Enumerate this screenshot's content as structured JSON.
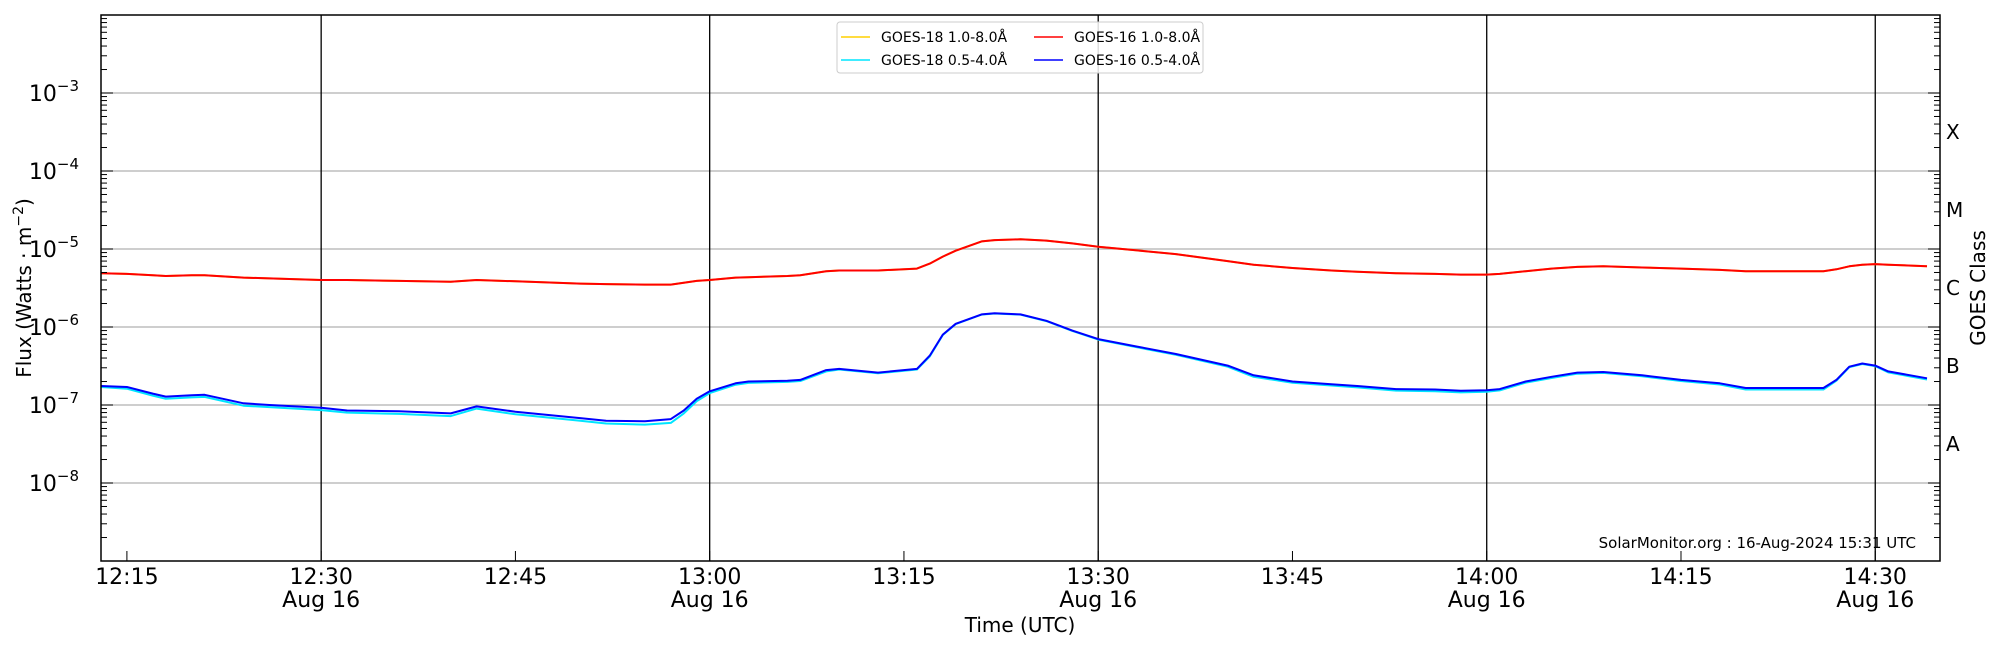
{
  "chart_data": {
    "type": "line",
    "title": "",
    "xlabel": "Time (UTC)",
    "ylabel": {
      "prefix": "Flux (Watts · m",
      "exp": "−2",
      "suffix": ")"
    },
    "y2label": "GOES Class",
    "xlim": [
      "12:13",
      "14:35"
    ],
    "ylim": [
      1e-09,
      0.01
    ],
    "yscale": "log",
    "grid": "horizontal at decades",
    "legend_position": "top-center",
    "watermark": "SolarMonitor.org : 16-Aug-2024 15:31 UTC",
    "x_ticks": [
      {
        "time": "12:15",
        "label": "12:15",
        "date": ""
      },
      {
        "time": "12:30",
        "label": "12:30",
        "date": "Aug 16"
      },
      {
        "time": "12:45",
        "label": "12:45",
        "date": ""
      },
      {
        "time": "13:00",
        "label": "13:00",
        "date": "Aug 16"
      },
      {
        "time": "13:15",
        "label": "13:15",
        "date": ""
      },
      {
        "time": "13:30",
        "label": "13:30",
        "date": "Aug 16"
      },
      {
        "time": "13:45",
        "label": "13:45",
        "date": ""
      },
      {
        "time": "14:00",
        "label": "14:00",
        "date": "Aug 16"
      },
      {
        "time": "14:15",
        "label": "14:15",
        "date": ""
      },
      {
        "time": "14:30",
        "label": "14:30",
        "date": "Aug 16"
      }
    ],
    "y_ticks": [
      {
        "value": 1e-08,
        "base": "10",
        "exp": "−8"
      },
      {
        "value": 1e-07,
        "base": "10",
        "exp": "−7"
      },
      {
        "value": 1e-06,
        "base": "10",
        "exp": "−6"
      },
      {
        "value": 1e-05,
        "base": "10",
        "exp": "−5"
      },
      {
        "value": 0.0001,
        "base": "10",
        "exp": "−4"
      },
      {
        "value": 0.001,
        "base": "10",
        "exp": "−3"
      }
    ],
    "goes_classes": [
      {
        "label": "A",
        "value": 3.16e-08
      },
      {
        "label": "B",
        "value": 3.16e-07
      },
      {
        "label": "C",
        "value": 3.16e-06
      },
      {
        "label": "M",
        "value": 3.16e-05
      },
      {
        "label": "X",
        "value": 0.000316
      }
    ],
    "x": [
      "12:13",
      "12:15",
      "12:17",
      "12:18",
      "12:20",
      "12:21",
      "12:24",
      "12:26",
      "12:30",
      "12:32",
      "12:36",
      "12:40",
      "12:42",
      "12:45",
      "12:50",
      "12:52",
      "12:55",
      "12:57",
      "12:58",
      "12:59",
      "13:00",
      "13:02",
      "13:03",
      "13:06",
      "13:07",
      "13:09",
      "13:10",
      "13:13",
      "13:16",
      "13:17",
      "13:18",
      "13:19",
      "13:21",
      "13:22",
      "13:24",
      "13:26",
      "13:28",
      "13:30",
      "13:33",
      "13:36",
      "13:40",
      "13:42",
      "13:45",
      "13:48",
      "13:50",
      "13:53",
      "13:56",
      "13:58",
      "14:00",
      "14:01",
      "14:03",
      "14:05",
      "14:07",
      "14:09",
      "14:12",
      "14:15",
      "14:18",
      "14:20",
      "14:24",
      "14:26",
      "14:27",
      "14:28",
      "14:29",
      "14:30",
      "14:31",
      "14:34"
    ],
    "series": [
      {
        "name": "GOES-18 1.0-8.0Å",
        "color": "#ffd000",
        "values": [
          4.9e-06,
          4.8e-06,
          4.6e-06,
          4.5e-06,
          4.6e-06,
          4.6e-06,
          4.3e-06,
          4.2e-06,
          4e-06,
          4e-06,
          3.9e-06,
          3.8e-06,
          4e-06,
          3.85e-06,
          3.6e-06,
          3.55e-06,
          3.5e-06,
          3.5e-06,
          3.7e-06,
          3.9e-06,
          4e-06,
          4.3e-06,
          4.35e-06,
          4.5e-06,
          4.6e-06,
          5.2e-06,
          5.3e-06,
          5.3e-06,
          5.6e-06,
          6.5e-06,
          8e-06,
          9.5e-06,
          1.25e-05,
          1.3e-05,
          1.33e-05,
          1.28e-05,
          1.18e-05,
          1.07e-05,
          9.6e-06,
          8.6e-06,
          7e-06,
          6.3e-06,
          5.7e-06,
          5.3e-06,
          5.1e-06,
          4.9e-06,
          4.8e-06,
          4.7e-06,
          4.7e-06,
          4.8e-06,
          5.2e-06,
          5.6e-06,
          5.9e-06,
          6e-06,
          5.8e-06,
          5.6e-06,
          5.4e-06,
          5.2e-06,
          5.2e-06,
          5.2e-06,
          5.5e-06,
          6e-06,
          6.3e-06,
          6.4e-06,
          6.3e-06,
          6e-06
        ]
      },
      {
        "name": "GOES-16 1.0-8.0Å",
        "color": "#ff0000",
        "values": [
          4.9e-06,
          4.8e-06,
          4.6e-06,
          4.5e-06,
          4.6e-06,
          4.6e-06,
          4.3e-06,
          4.2e-06,
          4e-06,
          4e-06,
          3.9e-06,
          3.8e-06,
          4e-06,
          3.85e-06,
          3.6e-06,
          3.55e-06,
          3.5e-06,
          3.5e-06,
          3.7e-06,
          3.9e-06,
          4e-06,
          4.3e-06,
          4.35e-06,
          4.5e-06,
          4.6e-06,
          5.2e-06,
          5.3e-06,
          5.3e-06,
          5.6e-06,
          6.5e-06,
          8e-06,
          9.5e-06,
          1.25e-05,
          1.3e-05,
          1.33e-05,
          1.28e-05,
          1.18e-05,
          1.07e-05,
          9.6e-06,
          8.6e-06,
          7e-06,
          6.3e-06,
          5.7e-06,
          5.3e-06,
          5.1e-06,
          4.9e-06,
          4.8e-06,
          4.7e-06,
          4.7e-06,
          4.8e-06,
          5.2e-06,
          5.6e-06,
          5.9e-06,
          6e-06,
          5.8e-06,
          5.6e-06,
          5.4e-06,
          5.2e-06,
          5.2e-06,
          5.2e-06,
          5.5e-06,
          6e-06,
          6.3e-06,
          6.4e-06,
          6.3e-06,
          6e-06
        ]
      },
      {
        "name": "GOES-18 0.5-4.0Å",
        "color": "#00e5ff",
        "values": [
          1.7e-07,
          1.62e-07,
          1.32e-07,
          1.2e-07,
          1.25e-07,
          1.27e-07,
          9.8e-08,
          9.4e-08,
          8.6e-08,
          8e-08,
          7.7e-08,
          7.2e-08,
          9e-08,
          7.6e-08,
          6.3e-08,
          5.8e-08,
          5.6e-08,
          5.9e-08,
          7.8e-08,
          1.12e-07,
          1.42e-07,
          1.82e-07,
          1.92e-07,
          1.98e-07,
          2.03e-07,
          2.7e-07,
          2.85e-07,
          2.55e-07,
          2.85e-07,
          4.2e-07,
          7.9e-07,
          1.09e-06,
          1.44e-06,
          1.49e-06,
          1.44e-06,
          1.19e-06,
          8.9e-07,
          6.9e-07,
          5.5e-07,
          4.4e-07,
          3.1e-07,
          2.3e-07,
          1.93e-07,
          1.78e-07,
          1.68e-07,
          1.53e-07,
          1.5e-07,
          1.45e-07,
          1.48e-07,
          1.54e-07,
          1.93e-07,
          2.22e-07,
          2.52e-07,
          2.58e-07,
          2.33e-07,
          2.03e-07,
          1.83e-07,
          1.58e-07,
          1.58e-07,
          1.58e-07,
          2.05e-07,
          3.05e-07,
          3.35e-07,
          3.15e-07,
          2.62e-07,
          2.12e-07
        ]
      },
      {
        "name": "GOES-16 0.5-4.0Å",
        "color": "#0000ff",
        "values": [
          1.75e-07,
          1.7e-07,
          1.4e-07,
          1.28e-07,
          1.33e-07,
          1.35e-07,
          1.05e-07,
          1e-07,
          9.2e-08,
          8.5e-08,
          8.3e-08,
          7.8e-08,
          9.6e-08,
          8.2e-08,
          6.8e-08,
          6.3e-08,
          6.2e-08,
          6.6e-08,
          8.5e-08,
          1.2e-07,
          1.5e-07,
          1.9e-07,
          2e-07,
          2.05e-07,
          2.1e-07,
          2.8e-07,
          2.9e-07,
          2.6e-07,
          2.9e-07,
          4.3e-07,
          8e-07,
          1.1e-06,
          1.45e-06,
          1.5e-06,
          1.45e-06,
          1.2e-06,
          9e-07,
          7e-07,
          5.6e-07,
          4.5e-07,
          3.2e-07,
          2.4e-07,
          2e-07,
          1.85e-07,
          1.75e-07,
          1.6e-07,
          1.58e-07,
          1.52e-07,
          1.55e-07,
          1.6e-07,
          2e-07,
          2.3e-07,
          2.6e-07,
          2.65e-07,
          2.4e-07,
          2.1e-07,
          1.9e-07,
          1.65e-07,
          1.65e-07,
          1.65e-07,
          2.1e-07,
          3.1e-07,
          3.4e-07,
          3.2e-07,
          2.7e-07,
          2.2e-07
        ]
      }
    ],
    "legend_order": [
      0,
      2,
      1,
      3
    ]
  }
}
